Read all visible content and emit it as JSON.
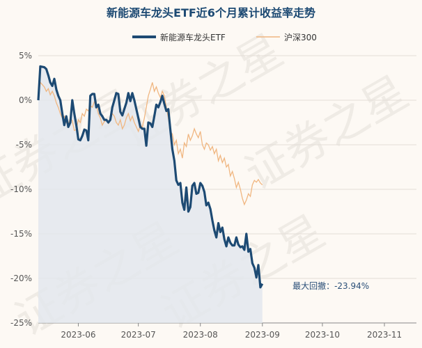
{
  "chart_data": {
    "type": "line",
    "title": "新能源车龙头ETF近6个月累计收益率走势",
    "watermark": "证券之星",
    "legend": {
      "position": "top"
    },
    "grid": {
      "horizontal": true,
      "vertical": false
    },
    "x_start": "2023-05-12",
    "x_end": "2023-11-17",
    "x_ticks": [
      "2023-06",
      "2023-07",
      "2023-08",
      "2023-09",
      "2023-10",
      "2023-11"
    ],
    "x_tick_dates": [
      "2023-06-01",
      "2023-07-01",
      "2023-08-01",
      "2023-09-01",
      "2023-10-01",
      "2023-11-01"
    ],
    "ylim": [
      -25,
      5
    ],
    "y_ticks": [
      5,
      0,
      -5,
      -10,
      -15,
      -20,
      -25
    ],
    "y_tick_labels": [
      "5%",
      "0%",
      "-5%",
      "-10%",
      "-15%",
      "-20%",
      "-25%"
    ],
    "colors": {
      "etf": "#1d4a73",
      "index": "#f0b680",
      "area": "#e3e8ed",
      "grid": "#e3ddd6"
    },
    "annotation": {
      "text": "最大回撤：-23.94%",
      "x": "2023-10-23",
      "y": -21.0
    },
    "series": [
      {
        "name": "新能源车龙头ETF",
        "points": [
          [
            "2023-05-12",
            0.0
          ],
          [
            "2023-05-13",
            3.8
          ],
          [
            "2023-05-15",
            3.7
          ],
          [
            "2023-05-16",
            3.5
          ],
          [
            "2023-05-17",
            2.8
          ],
          [
            "2023-05-18",
            2.0
          ],
          [
            "2023-05-19",
            1.6
          ],
          [
            "2023-05-20",
            2.4
          ],
          [
            "2023-05-21",
            1.2
          ],
          [
            "2023-05-22",
            0.5
          ],
          [
            "2023-05-23",
            0.0
          ],
          [
            "2023-05-24",
            -1.5
          ],
          [
            "2023-05-25",
            -2.8
          ],
          [
            "2023-05-26",
            -1.8
          ],
          [
            "2023-05-27",
            -3.0
          ],
          [
            "2023-05-28",
            -2.5
          ],
          [
            "2023-05-29",
            0.0
          ],
          [
            "2023-05-30",
            -1.5
          ],
          [
            "2023-05-31",
            -2.8
          ],
          [
            "2023-06-01",
            -4.4
          ],
          [
            "2023-06-02",
            -4.5
          ],
          [
            "2023-06-03",
            -4.0
          ],
          [
            "2023-06-04",
            -3.3
          ],
          [
            "2023-06-05",
            -3.4
          ],
          [
            "2023-06-06",
            -4.5
          ],
          [
            "2023-06-07",
            0.5
          ],
          [
            "2023-06-08",
            0.7
          ],
          [
            "2023-06-09",
            0.7
          ],
          [
            "2023-06-10",
            -0.8
          ],
          [
            "2023-06-11",
            -0.5
          ],
          [
            "2023-06-12",
            -1.5
          ],
          [
            "2023-06-13",
            -1.8
          ],
          [
            "2023-06-14",
            -2.2
          ],
          [
            "2023-06-15",
            -2.2
          ],
          [
            "2023-06-16",
            -2.5
          ],
          [
            "2023-06-17",
            -2.2
          ],
          [
            "2023-06-18",
            -0.8
          ],
          [
            "2023-06-19",
            0.0
          ],
          [
            "2023-06-20",
            0.8
          ],
          [
            "2023-06-21",
            0.7
          ],
          [
            "2023-06-22",
            -1.3
          ],
          [
            "2023-06-23",
            -1.7
          ],
          [
            "2023-06-24",
            -1.0
          ],
          [
            "2023-06-25",
            -0.3
          ],
          [
            "2023-06-26",
            0.8
          ],
          [
            "2023-06-27",
            -0.1
          ],
          [
            "2023-06-28",
            0.8
          ],
          [
            "2023-06-29",
            0.0
          ],
          [
            "2023-06-30",
            -1.0
          ],
          [
            "2023-07-01",
            -2.0
          ],
          [
            "2023-07-02",
            -3.0
          ],
          [
            "2023-07-03",
            -3.2
          ],
          [
            "2023-07-04",
            -3.2
          ],
          [
            "2023-07-05",
            -5.1
          ],
          [
            "2023-07-06",
            -2.5
          ],
          [
            "2023-07-07",
            -2.6
          ],
          [
            "2023-07-08",
            -3.0
          ],
          [
            "2023-07-09",
            -1.8
          ],
          [
            "2023-07-10",
            -0.5
          ],
          [
            "2023-07-11",
            -0.8
          ],
          [
            "2023-07-12",
            -0.2
          ],
          [
            "2023-07-13",
            0.5
          ],
          [
            "2023-07-14",
            -0.4
          ],
          [
            "2023-07-15",
            -1.2
          ],
          [
            "2023-07-16",
            -1.0
          ],
          [
            "2023-07-17",
            -3.3
          ],
          [
            "2023-07-18",
            -5.5
          ],
          [
            "2023-07-19",
            -6.8
          ],
          [
            "2023-07-20",
            -9.0
          ],
          [
            "2023-07-21",
            -9.5
          ],
          [
            "2023-07-22",
            -9.3
          ],
          [
            "2023-07-23",
            -11.5
          ],
          [
            "2023-07-24",
            -12.3
          ],
          [
            "2023-07-25",
            -9.8
          ],
          [
            "2023-07-26",
            -12.5
          ],
          [
            "2023-07-27",
            -12.0
          ],
          [
            "2023-07-28",
            -9.6
          ],
          [
            "2023-07-29",
            -9.3
          ],
          [
            "2023-07-30",
            -10.5
          ],
          [
            "2023-07-31",
            -10.4
          ],
          [
            "2023-08-01",
            -9.3
          ],
          [
            "2023-08-02",
            -9.6
          ],
          [
            "2023-08-03",
            -10.3
          ],
          [
            "2023-08-04",
            -11.8
          ],
          [
            "2023-08-05",
            -11.5
          ],
          [
            "2023-08-06",
            -12.2
          ],
          [
            "2023-08-07",
            -13.5
          ],
          [
            "2023-08-08",
            -14.6
          ],
          [
            "2023-08-09",
            -15.4
          ],
          [
            "2023-08-10",
            -13.8
          ],
          [
            "2023-08-11",
            -14.8
          ],
          [
            "2023-08-12",
            -14.3
          ],
          [
            "2023-08-13",
            -15.6
          ],
          [
            "2023-08-14",
            -16.4
          ],
          [
            "2023-08-15",
            -15.4
          ],
          [
            "2023-08-16",
            -16.0
          ],
          [
            "2023-08-17",
            -16.3
          ],
          [
            "2023-08-18",
            -16.3
          ],
          [
            "2023-08-19",
            -15.4
          ],
          [
            "2023-08-20",
            -16.2
          ],
          [
            "2023-08-21",
            -16.5
          ],
          [
            "2023-08-22",
            -16.4
          ],
          [
            "2023-08-23",
            -16.8
          ],
          [
            "2023-08-24",
            -15.0
          ],
          [
            "2023-08-25",
            -17.0
          ],
          [
            "2023-08-26",
            -16.7
          ],
          [
            "2023-08-27",
            -18.3
          ],
          [
            "2023-08-28",
            -18.8
          ],
          [
            "2023-08-29",
            -19.9
          ],
          [
            "2023-08-30",
            -18.5
          ],
          [
            "2023-08-31",
            -21.0
          ],
          [
            "2023-09-01",
            -20.6
          ]
        ]
      },
      {
        "name": "沪深300",
        "points": [
          [
            "2023-05-12",
            0.5
          ],
          [
            "2023-05-13",
            2.0
          ],
          [
            "2023-05-15",
            1.5
          ],
          [
            "2023-05-16",
            1.0
          ],
          [
            "2023-05-17",
            1.3
          ],
          [
            "2023-05-18",
            0.6
          ],
          [
            "2023-05-19",
            1.0
          ],
          [
            "2023-05-20",
            0.5
          ],
          [
            "2023-05-21",
            -0.3
          ],
          [
            "2023-05-22",
            -0.8
          ],
          [
            "2023-05-23",
            -1.5
          ],
          [
            "2023-05-24",
            -2.0
          ],
          [
            "2023-05-25",
            -1.8
          ],
          [
            "2023-05-26",
            -2.5
          ],
          [
            "2023-05-27",
            -2.8
          ],
          [
            "2023-05-28",
            -2.0
          ],
          [
            "2023-05-29",
            -2.3
          ],
          [
            "2023-05-30",
            -3.4
          ],
          [
            "2023-05-31",
            -3.3
          ],
          [
            "2023-06-01",
            -2.2
          ],
          [
            "2023-06-02",
            -2.5
          ],
          [
            "2023-06-03",
            -1.5
          ],
          [
            "2023-06-04",
            -1.8
          ],
          [
            "2023-06-05",
            -1.0
          ],
          [
            "2023-06-06",
            -1.2
          ],
          [
            "2023-06-07",
            -0.6
          ],
          [
            "2023-06-08",
            -0.8
          ],
          [
            "2023-06-09",
            -0.2
          ],
          [
            "2023-06-10",
            -0.5
          ],
          [
            "2023-06-11",
            -1.5
          ],
          [
            "2023-06-12",
            -2.0
          ],
          [
            "2023-06-13",
            -2.8
          ],
          [
            "2023-06-14",
            -2.4
          ],
          [
            "2023-06-15",
            -2.2
          ],
          [
            "2023-06-16",
            -2.6
          ],
          [
            "2023-06-17",
            -2.0
          ],
          [
            "2023-06-18",
            -1.5
          ],
          [
            "2023-06-19",
            -1.8
          ],
          [
            "2023-06-20",
            -2.5
          ],
          [
            "2023-06-21",
            -2.8
          ],
          [
            "2023-06-22",
            -2.2
          ],
          [
            "2023-06-23",
            -3.2
          ],
          [
            "2023-06-24",
            -2.8
          ],
          [
            "2023-06-25",
            -2.0
          ],
          [
            "2023-06-26",
            -1.5
          ],
          [
            "2023-06-27",
            -2.3
          ],
          [
            "2023-06-28",
            -1.8
          ],
          [
            "2023-06-29",
            -2.5
          ],
          [
            "2023-06-30",
            -3.0
          ],
          [
            "2023-07-01",
            -3.5
          ],
          [
            "2023-07-02",
            -2.8
          ],
          [
            "2023-07-03",
            -3.0
          ],
          [
            "2023-07-04",
            -2.0
          ],
          [
            "2023-07-05",
            -0.8
          ],
          [
            "2023-07-06",
            0.5
          ],
          [
            "2023-07-07",
            1.2
          ],
          [
            "2023-07-08",
            2.0
          ],
          [
            "2023-07-09",
            1.0
          ],
          [
            "2023-07-10",
            1.5
          ],
          [
            "2023-07-11",
            0.8
          ],
          [
            "2023-07-12",
            0.3
          ],
          [
            "2023-07-13",
            1.0
          ],
          [
            "2023-07-14",
            0.5
          ],
          [
            "2023-07-15",
            -0.8
          ],
          [
            "2023-07-16",
            -2.0
          ],
          [
            "2023-07-17",
            -3.5
          ],
          [
            "2023-07-18",
            -3.8
          ],
          [
            "2023-07-19",
            -5.0
          ],
          [
            "2023-07-20",
            -4.5
          ],
          [
            "2023-07-21",
            -6.0
          ],
          [
            "2023-07-22",
            -5.5
          ],
          [
            "2023-07-23",
            -6.5
          ],
          [
            "2023-07-24",
            -4.8
          ],
          [
            "2023-07-25",
            -5.2
          ],
          [
            "2023-07-26",
            -3.8
          ],
          [
            "2023-07-27",
            -4.5
          ],
          [
            "2023-07-28",
            -4.0
          ],
          [
            "2023-07-29",
            -3.2
          ],
          [
            "2023-07-30",
            -3.8
          ],
          [
            "2023-07-31",
            -4.2
          ],
          [
            "2023-08-01",
            -3.5
          ],
          [
            "2023-08-02",
            -5.0
          ],
          [
            "2023-08-03",
            -5.5
          ],
          [
            "2023-08-04",
            -4.8
          ],
          [
            "2023-08-05",
            -5.0
          ],
          [
            "2023-08-06",
            -5.6
          ],
          [
            "2023-08-07",
            -5.2
          ],
          [
            "2023-08-08",
            -6.0
          ],
          [
            "2023-08-09",
            -5.5
          ],
          [
            "2023-08-10",
            -6.8
          ],
          [
            "2023-08-11",
            -6.2
          ],
          [
            "2023-08-12",
            -7.0
          ],
          [
            "2023-08-13",
            -6.5
          ],
          [
            "2023-08-14",
            -7.5
          ],
          [
            "2023-08-15",
            -7.2
          ],
          [
            "2023-08-16",
            -8.5
          ],
          [
            "2023-08-17",
            -8.0
          ],
          [
            "2023-08-18",
            -8.8
          ],
          [
            "2023-08-19",
            -9.8
          ],
          [
            "2023-08-20",
            -9.2
          ],
          [
            "2023-08-21",
            -10.0
          ],
          [
            "2023-08-22",
            -11.0
          ],
          [
            "2023-08-23",
            -11.7
          ],
          [
            "2023-08-24",
            -11.2
          ],
          [
            "2023-08-25",
            -10.5
          ],
          [
            "2023-08-26",
            -10.8
          ],
          [
            "2023-08-27",
            -9.5
          ],
          [
            "2023-08-28",
            -9.0
          ],
          [
            "2023-08-29",
            -9.2
          ],
          [
            "2023-08-30",
            -8.9
          ],
          [
            "2023-08-31",
            -9.3
          ],
          [
            "2023-09-01",
            -9.5
          ]
        ]
      }
    ]
  }
}
